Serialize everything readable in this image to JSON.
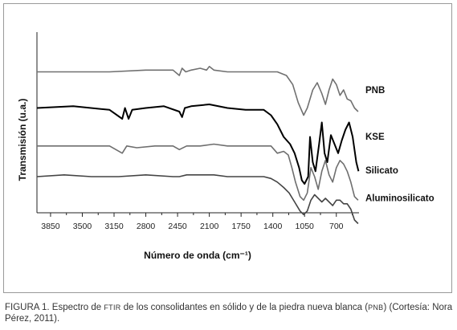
{
  "chart_data": {
    "type": "line",
    "title": "",
    "xlabel": "Número de onda (cm⁻¹)",
    "ylabel": "Transmisión (u.a.)",
    "x_ticks": [
      3850,
      3500,
      3150,
      2800,
      2450,
      2100,
      1750,
      1400,
      1050,
      700
    ],
    "xlim": [
      4000,
      450
    ],
    "x_reversed": true,
    "grid": false,
    "legend": "right, labels beside each trace",
    "series": [
      {
        "name": "PNB",
        "color": "#707070",
        "offset": 0.78,
        "points": [
          [
            4000,
            0
          ],
          [
            3600,
            0
          ],
          [
            3200,
            0
          ],
          [
            2800,
            0.01
          ],
          [
            2500,
            0.01
          ],
          [
            2430,
            -0.02
          ],
          [
            2400,
            0.02
          ],
          [
            2360,
            0.0
          ],
          [
            2300,
            0.01
          ],
          [
            2200,
            0.02
          ],
          [
            2130,
            0.01
          ],
          [
            2100,
            0.03
          ],
          [
            2050,
            0.01
          ],
          [
            1900,
            0.0
          ],
          [
            1700,
            0.0
          ],
          [
            1500,
            0.0
          ],
          [
            1350,
            0.0
          ],
          [
            1250,
            -0.02
          ],
          [
            1180,
            -0.07
          ],
          [
            1120,
            -0.17
          ],
          [
            1060,
            -0.24
          ],
          [
            1020,
            -0.2
          ],
          [
            960,
            -0.1
          ],
          [
            910,
            -0.06
          ],
          [
            860,
            -0.12
          ],
          [
            820,
            -0.18
          ],
          [
            780,
            -0.1
          ],
          [
            740,
            -0.04
          ],
          [
            700,
            -0.07
          ],
          [
            660,
            -0.13
          ],
          [
            620,
            -0.1
          ],
          [
            580,
            -0.15
          ],
          [
            540,
            -0.16
          ],
          [
            500,
            -0.2
          ],
          [
            460,
            -0.22
          ]
        ]
      },
      {
        "name": "KSE",
        "color": "#000000",
        "offset": 0.58,
        "points": [
          [
            4000,
            0
          ],
          [
            3600,
            0.01
          ],
          [
            3200,
            -0.01
          ],
          [
            3060,
            -0.06
          ],
          [
            3030,
            0.0
          ],
          [
            2990,
            -0.06
          ],
          [
            2950,
            -0.01
          ],
          [
            2800,
            0.0
          ],
          [
            2600,
            0.01
          ],
          [
            2430,
            -0.02
          ],
          [
            2400,
            -0.05
          ],
          [
            2370,
            0.0
          ],
          [
            2300,
            0.01
          ],
          [
            2100,
            0.02
          ],
          [
            1900,
            0.0
          ],
          [
            1700,
            -0.01
          ],
          [
            1500,
            -0.01
          ],
          [
            1420,
            -0.04
          ],
          [
            1350,
            -0.09
          ],
          [
            1280,
            -0.16
          ],
          [
            1210,
            -0.2
          ],
          [
            1160,
            -0.25
          ],
          [
            1110,
            -0.33
          ],
          [
            1080,
            -0.4
          ],
          [
            1050,
            -0.42
          ],
          [
            1010,
            -0.38
          ],
          [
            990,
            -0.16
          ],
          [
            960,
            -0.3
          ],
          [
            930,
            -0.35
          ],
          [
            890,
            -0.2
          ],
          [
            860,
            -0.08
          ],
          [
            830,
            -0.25
          ],
          [
            800,
            -0.3
          ],
          [
            760,
            -0.15
          ],
          [
            720,
            -0.2
          ],
          [
            680,
            -0.25
          ],
          [
            640,
            -0.18
          ],
          [
            600,
            -0.12
          ],
          [
            560,
            -0.08
          ],
          [
            520,
            -0.16
          ],
          [
            480,
            -0.3
          ],
          [
            455,
            -0.35
          ]
        ]
      },
      {
        "name": "Silicato",
        "color": "#6e6e6e",
        "offset": 0.37,
        "points": [
          [
            4000,
            0
          ],
          [
            3600,
            0
          ],
          [
            3200,
            0
          ],
          [
            3060,
            -0.04
          ],
          [
            3010,
            0.0
          ],
          [
            2900,
            -0.01
          ],
          [
            2700,
            0.0
          ],
          [
            2500,
            0.0
          ],
          [
            2430,
            -0.02
          ],
          [
            2350,
            0.0
          ],
          [
            2200,
            0.0
          ],
          [
            2050,
            0.01
          ],
          [
            1900,
            0.0
          ],
          [
            1700,
            0.0
          ],
          [
            1500,
            0.0
          ],
          [
            1420,
            0.0
          ],
          [
            1350,
            -0.04
          ],
          [
            1280,
            -0.03
          ],
          [
            1230,
            -0.05
          ],
          [
            1190,
            -0.12
          ],
          [
            1150,
            -0.2
          ],
          [
            1100,
            -0.28
          ],
          [
            1060,
            -0.3
          ],
          [
            1020,
            -0.26
          ],
          [
            980,
            -0.12
          ],
          [
            940,
            -0.17
          ],
          [
            900,
            -0.24
          ],
          [
            860,
            -0.14
          ],
          [
            820,
            -0.08
          ],
          [
            780,
            -0.16
          ],
          [
            740,
            -0.2
          ],
          [
            700,
            -0.12
          ],
          [
            660,
            -0.08
          ],
          [
            620,
            -0.1
          ],
          [
            580,
            -0.14
          ],
          [
            540,
            -0.2
          ],
          [
            500,
            -0.28
          ],
          [
            460,
            -0.3
          ]
        ]
      },
      {
        "name": "Aluminosilicato",
        "color": "#444444",
        "offset": 0.2,
        "points": [
          [
            4000,
            0
          ],
          [
            3700,
            0.01
          ],
          [
            3400,
            0
          ],
          [
            3100,
            0.0
          ],
          [
            2800,
            0.01
          ],
          [
            2500,
            0.0
          ],
          [
            2430,
            0.0
          ],
          [
            2350,
            0.01
          ],
          [
            2200,
            0.01
          ],
          [
            2050,
            0.01
          ],
          [
            1900,
            0.0
          ],
          [
            1700,
            0.0
          ],
          [
            1500,
            0.0
          ],
          [
            1420,
            -0.01
          ],
          [
            1350,
            -0.03
          ],
          [
            1280,
            -0.06
          ],
          [
            1220,
            -0.09
          ],
          [
            1160,
            -0.14
          ],
          [
            1100,
            -0.19
          ],
          [
            1060,
            -0.21
          ],
          [
            1020,
            -0.19
          ],
          [
            980,
            -0.13
          ],
          [
            940,
            -0.1
          ],
          [
            900,
            -0.12
          ],
          [
            860,
            -0.14
          ],
          [
            820,
            -0.12
          ],
          [
            780,
            -0.14
          ],
          [
            740,
            -0.16
          ],
          [
            700,
            -0.13
          ],
          [
            660,
            -0.13
          ],
          [
            620,
            -0.15
          ],
          [
            580,
            -0.15
          ],
          [
            540,
            -0.18
          ],
          [
            500,
            -0.24
          ],
          [
            460,
            -0.26
          ]
        ]
      }
    ]
  },
  "caption": {
    "part1": "FIGURA 1. Espectro de ",
    "sc1": "FTIR",
    "part2": " de los consolidantes en sólido y de la piedra nueva blanca (",
    "sc2": "PNB",
    "part3": ") (Cortesía: Nora Pérez, 2011)."
  }
}
